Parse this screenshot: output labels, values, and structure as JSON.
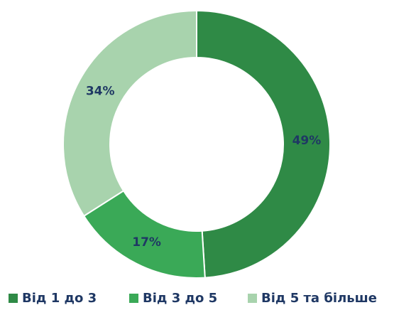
{
  "chart_data": {
    "type": "donut",
    "categories": [
      "Від 1 до 3",
      "Від 3 до 5",
      "Від 5 та більше"
    ],
    "values": [
      49,
      17,
      34
    ],
    "value_labels": [
      "49%",
      "17%",
      "34%"
    ],
    "colors": [
      "#2f8a46",
      "#3aa957",
      "#a8d3ad"
    ],
    "legend": "bottom"
  }
}
